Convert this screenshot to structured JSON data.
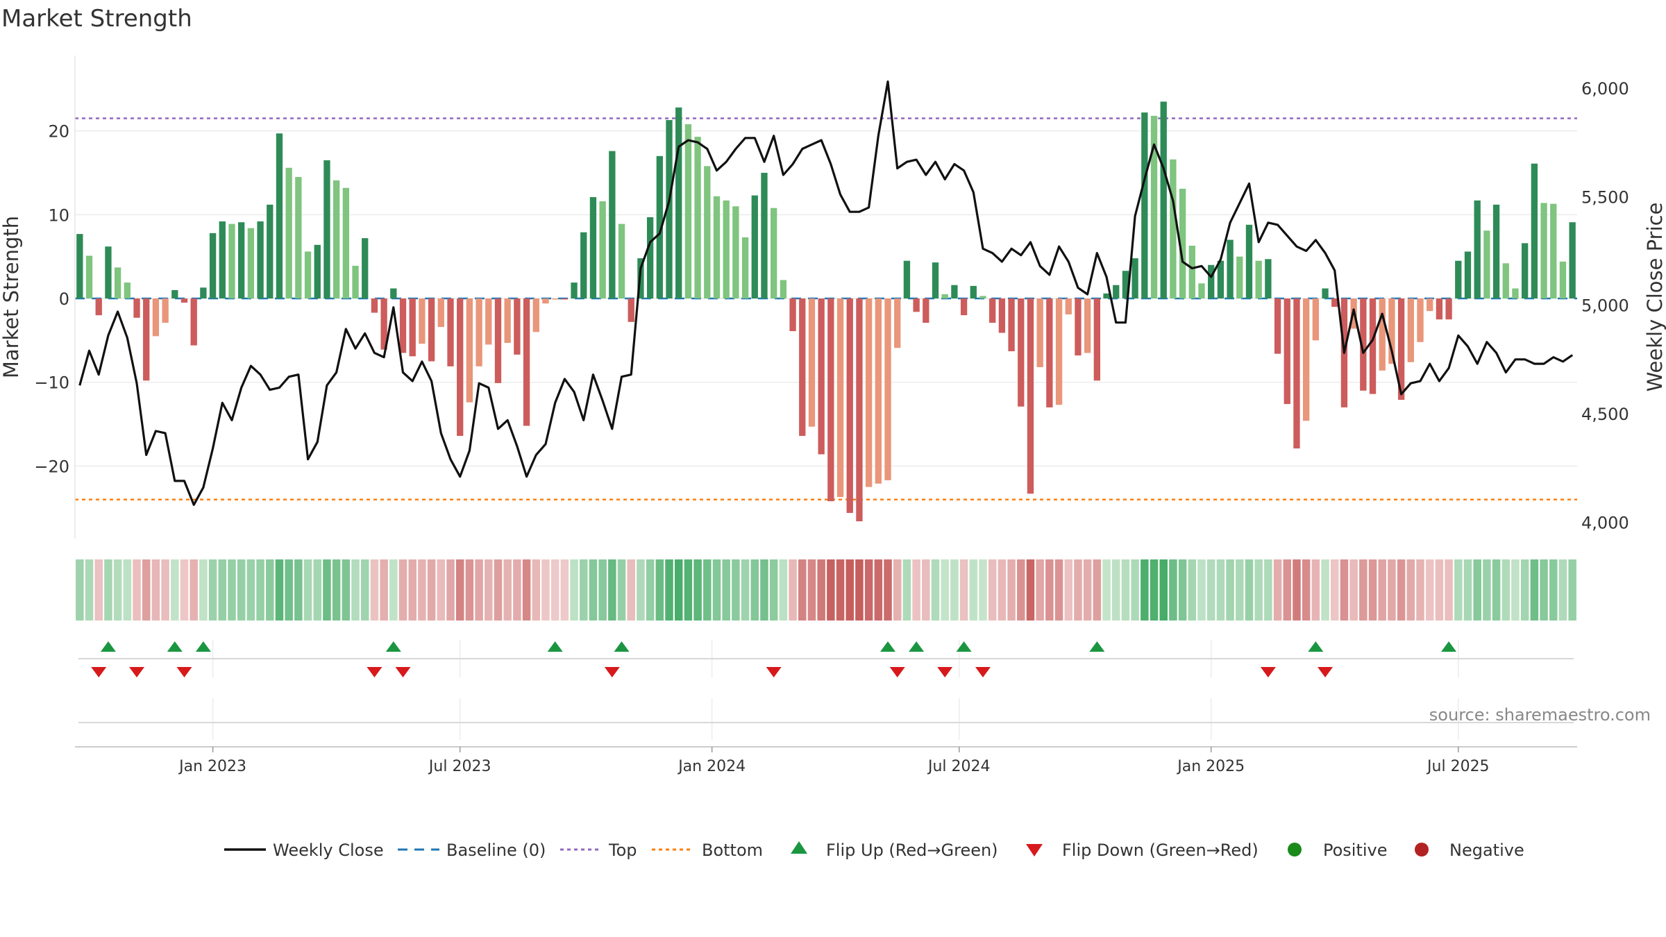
{
  "chart_data": {
    "type": "bar",
    "title": "Market Strength",
    "ylabel_left": "Market Strength",
    "ylabel_right": "Weekly Close Price",
    "source": "source: sharemaestro.com",
    "left_ylim": [
      -28,
      29
    ],
    "left_ticks": [
      20,
      10,
      0,
      -10,
      -20
    ],
    "left_tick_labels": [
      "20",
      "10",
      "0",
      "−10",
      "−20"
    ],
    "right_ylim": [
      3950,
      6150
    ],
    "right_ticks": [
      6000,
      5500,
      5000,
      4500,
      4000
    ],
    "right_tick_labels": [
      "6,000",
      "5,500",
      "5,000",
      "4,500",
      "4,000"
    ],
    "x_tick_labels": [
      "Jan 2023",
      "Jul 2023",
      "Jan 2024",
      "Jul 2024",
      "Jan 2025",
      "Jul 2025"
    ],
    "x_tick_weeks": [
      14.5,
      40.5,
      67,
      93,
      119.5,
      145.5
    ],
    "top_level": 21.5,
    "bottom_level": -24,
    "baseline": 0,
    "colors": {
      "strong_pos": "#2e8b57",
      "weak_pos": "#7fc47f",
      "strong_neg": "#cd5c5c",
      "weak_neg": "#e9967a",
      "price": "#111111",
      "baseline": "#1f77b4",
      "top": "#9467bd",
      "bottom": "#ff7f0e",
      "flip_up": "#1a9641",
      "flip_down": "#d7191c",
      "positive": "#1a8a1a",
      "negative": "#b22222"
    },
    "strength": [
      7.7,
      5.1,
      -2,
      6.2,
      3.7,
      1.9,
      -2.3,
      -9.8,
      -4.5,
      -2.9,
      1,
      -0.5,
      -5.6,
      1.3,
      7.8,
      9.2,
      8.9,
      9.1,
      8.4,
      9.2,
      11.2,
      19.7,
      15.6,
      14.5,
      5.6,
      6.4,
      16.5,
      14.1,
      13.2,
      3.9,
      7.2,
      -1.7,
      -6.1,
      1.2,
      -6.5,
      -6.9,
      -5.4,
      -7.5,
      -3.4,
      -8.1,
      -16.4,
      -12.4,
      -8.1,
      -5.5,
      -10.1,
      -5.3,
      -6.7,
      -15.2,
      -4,
      -0.6,
      -0.1,
      -0.1,
      1.9,
      7.9,
      12.1,
      11.6,
      17.6,
      8.9,
      -2.8,
      4.8,
      9.7,
      17,
      21.3,
      22.8,
      20.8,
      19.3,
      15.8,
      12.2,
      11.7,
      11,
      7.3,
      12.3,
      15,
      10.8,
      2.2,
      -3.9,
      -16.4,
      -15.3,
      -18.6,
      -24.2,
      -23.7,
      -25.6,
      -26.6,
      -22.5,
      -22.1,
      -21.7,
      -5.9,
      4.5,
      -1.6,
      -2.9,
      4.3,
      0.5,
      1.6,
      -2,
      1.5,
      0.3,
      -2.9,
      -4.1,
      -6.3,
      -12.9,
      -23.3,
      -8.2,
      -13,
      -12.7,
      -1.9,
      -6.8,
      -6.5,
      -9.8,
      0.6,
      1.6,
      3.3,
      4.8,
      22.2,
      21.8,
      23.5,
      16.6,
      13.1,
      6.3,
      1.8,
      4,
      4.5,
      7,
      5,
      8.8,
      4.5,
      4.7,
      -6.6,
      -12.6,
      -17.9,
      -14.6,
      -5,
      1.2,
      -1,
      -13,
      -3.6,
      -11,
      -11.4,
      -8.6,
      -7.8,
      -12.1,
      -7.6,
      -5.2,
      -1.5,
      -2.5,
      -2.5,
      4.5,
      5.6,
      11.7,
      8.1,
      11.2,
      4.2,
      1.2,
      6.6,
      16.1,
      11.4,
      11.3,
      4.4,
      9.1
    ],
    "weekly_close": [
      4630,
      4790,
      4680,
      4860,
      4970,
      4850,
      4640,
      4310,
      4420,
      4410,
      4190,
      4190,
      4080,
      4160,
      4340,
      4550,
      4470,
      4620,
      4720,
      4680,
      4610,
      4620,
      4670,
      4680,
      4290,
      4370,
      4630,
      4690,
      4890,
      4800,
      4870,
      4780,
      4760,
      4990,
      4690,
      4650,
      4740,
      4650,
      4410,
      4290,
      4210,
      4330,
      4640,
      4620,
      4430,
      4470,
      4350,
      4210,
      4310,
      4360,
      4550,
      4660,
      4600,
      4470,
      4680,
      4560,
      4430,
      4670,
      4680,
      5170,
      5290,
      5330,
      5480,
      5730,
      5760,
      5750,
      5720,
      5620,
      5660,
      5720,
      5770,
      5770,
      5660,
      5780,
      5600,
      5650,
      5720,
      5740,
      5760,
      5650,
      5510,
      5430,
      5430,
      5450,
      5780,
      6030,
      5630,
      5660,
      5670,
      5600,
      5660,
      5580,
      5650,
      5620,
      5520,
      5260,
      5240,
      5200,
      5260,
      5230,
      5290,
      5180,
      5140,
      5270,
      5200,
      5080,
      5050,
      5240,
      5130,
      4920,
      4920,
      5410,
      5580,
      5740,
      5630,
      5480,
      5200,
      5170,
      5180,
      5130,
      5210,
      5380,
      5470,
      5560,
      5290,
      5380,
      5370,
      5320,
      5270,
      5250,
      5300,
      5240,
      5160,
      4780,
      4980,
      4780,
      4840,
      4960,
      4790,
      4590,
      4640,
      4650,
      4730,
      4650,
      4710,
      4860,
      4810,
      4730,
      4830,
      4780,
      4690,
      4750,
      4750,
      4730,
      4730,
      4760,
      4740,
      4770
    ],
    "flip_up_weeks": [
      3,
      10,
      13,
      33,
      50,
      57,
      85,
      88,
      93,
      107,
      130,
      144
    ],
    "flip_down_weeks": [
      2,
      6,
      11,
      31,
      34,
      56,
      73,
      86,
      91,
      95,
      125,
      131
    ],
    "legend": [
      "Weekly Close",
      "Baseline (0)",
      "Top",
      "Bottom",
      "Flip Up (Red→Green)",
      "Flip Down (Green→Red)",
      "Positive",
      "Negative"
    ]
  }
}
